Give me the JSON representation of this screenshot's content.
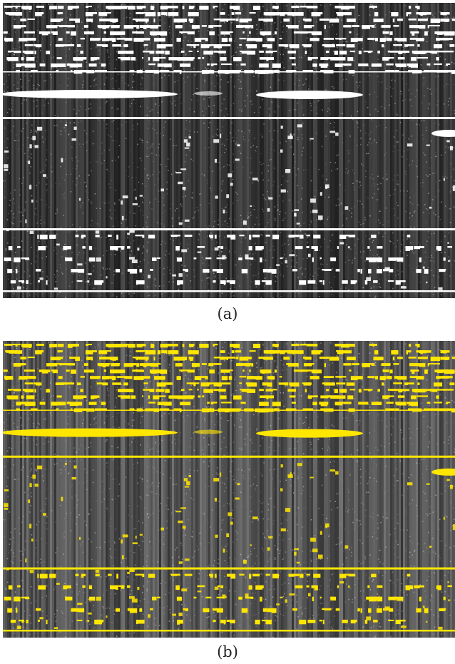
{
  "figure": {
    "panels": [
      {
        "id": "a",
        "caption": "(a)",
        "overlay_color": "#ffffff"
      },
      {
        "id": "b",
        "caption": "(b)",
        "overlay_color": "#ffe600"
      }
    ]
  }
}
